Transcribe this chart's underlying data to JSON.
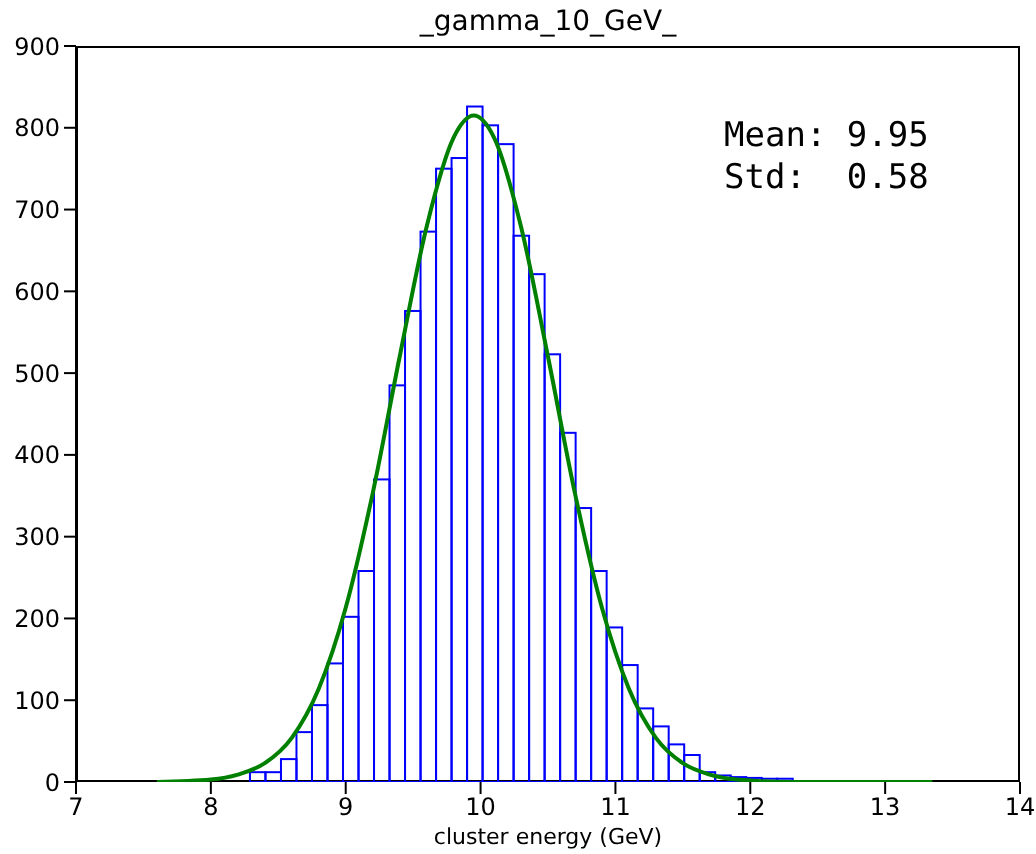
{
  "chart_data": {
    "type": "histogram",
    "title": "_gamma_10_GeV_",
    "xlabel": "cluster energy (GeV)",
    "bins": [
      7.6,
      7.715,
      7.83,
      7.945,
      8.06,
      8.175,
      8.29,
      8.405,
      8.52,
      8.635,
      8.75,
      8.865,
      8.98,
      9.095,
      9.21,
      9.325,
      9.44,
      9.555,
      9.67,
      9.785,
      9.9,
      10.015,
      10.13,
      10.245,
      10.36,
      10.475,
      10.59,
      10.705,
      10.82,
      10.935,
      11.05,
      11.165,
      11.28,
      11.395,
      11.51,
      11.625,
      11.74,
      11.855,
      11.97,
      12.085,
      12.2,
      12.315,
      12.43,
      12.545,
      12.66,
      12.775,
      12.89,
      13.005,
      13.12,
      13.235,
      13.35
    ],
    "values": [
      0,
      0,
      0,
      0,
      0,
      0,
      12,
      12,
      28,
      61,
      94,
      145,
      202,
      258,
      370,
      485,
      576,
      673,
      750,
      763,
      826,
      803,
      780,
      668,
      621,
      523,
      427,
      335,
      258,
      189,
      143,
      90,
      68,
      46,
      33,
      12,
      8,
      6,
      5,
      4,
      4,
      1,
      1,
      1,
      1,
      1,
      0,
      0,
      0,
      0
    ],
    "color": "#0000ff",
    "series": [
      {
        "type": "line",
        "color": "#008000",
        "x": [
          7.6,
          8.0,
          8.2,
          8.4,
          8.6,
          8.8,
          9.0,
          9.2,
          9.4,
          9.6,
          9.8,
          9.95,
          10.1,
          10.3,
          10.5,
          10.7,
          10.9,
          11.1,
          11.3,
          11.5,
          11.7,
          11.9,
          12.3,
          12.8,
          13.35
        ],
        "values": [
          0,
          3,
          9,
          23,
          54,
          114,
          213,
          353,
          520,
          679,
          788,
          815,
          788,
          679,
          520,
          353,
          213,
          114,
          54,
          23,
          9,
          3,
          0,
          0,
          0
        ]
      }
    ],
    "xlim": [
      7,
      14
    ],
    "xticks": [
      7,
      8,
      9,
      10,
      11,
      12,
      13,
      14
    ],
    "ylim": [
      0,
      900
    ],
    "yticks": [
      0,
      100,
      200,
      300,
      400,
      500,
      600,
      700,
      800,
      900
    ],
    "grid": false,
    "legend": false,
    "annotations": [
      "Mean: 9.95",
      "Std:  0.58"
    ]
  }
}
